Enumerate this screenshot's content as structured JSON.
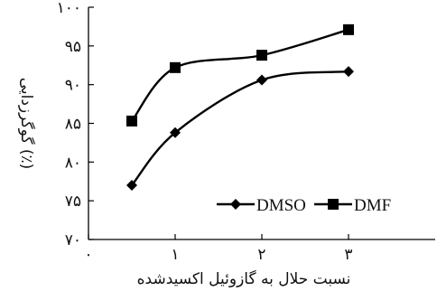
{
  "chart_data": {
    "type": "line",
    "xlabel": "نسبت حلال به گازوئیل اکسیدشده",
    "ylabel": "گوگرزدایی (٪)",
    "xlim": [
      0,
      4
    ],
    "ylim": [
      70,
      100
    ],
    "x_ticks": [
      {
        "value": 0,
        "label": "۰"
      },
      {
        "value": 1,
        "label": "۱"
      },
      {
        "value": 2,
        "label": "۲"
      },
      {
        "value": 3,
        "label": "۳"
      }
    ],
    "y_ticks": [
      {
        "value": 70,
        "label": "۷۰"
      },
      {
        "value": 75,
        "label": "۷۵"
      },
      {
        "value": 80,
        "label": "۸۰"
      },
      {
        "value": 85,
        "label": "۸۵"
      },
      {
        "value": 90,
        "label": "۹۰"
      },
      {
        "value": 95,
        "label": "۹۵"
      },
      {
        "value": 100,
        "label": "۱۰۰"
      }
    ],
    "grid": false,
    "legend_position": "bottom-right",
    "series": [
      {
        "name": "DMSO",
        "marker": "diamond",
        "color": "#000000",
        "x": [
          0.5,
          1,
          2,
          3
        ],
        "y": [
          77,
          83.8,
          90.6,
          91.7
        ]
      },
      {
        "name": "DMF",
        "marker": "square",
        "color": "#000000",
        "x": [
          0.5,
          1,
          2,
          3
        ],
        "y": [
          85.3,
          92.2,
          93.8,
          97.1
        ]
      }
    ]
  }
}
